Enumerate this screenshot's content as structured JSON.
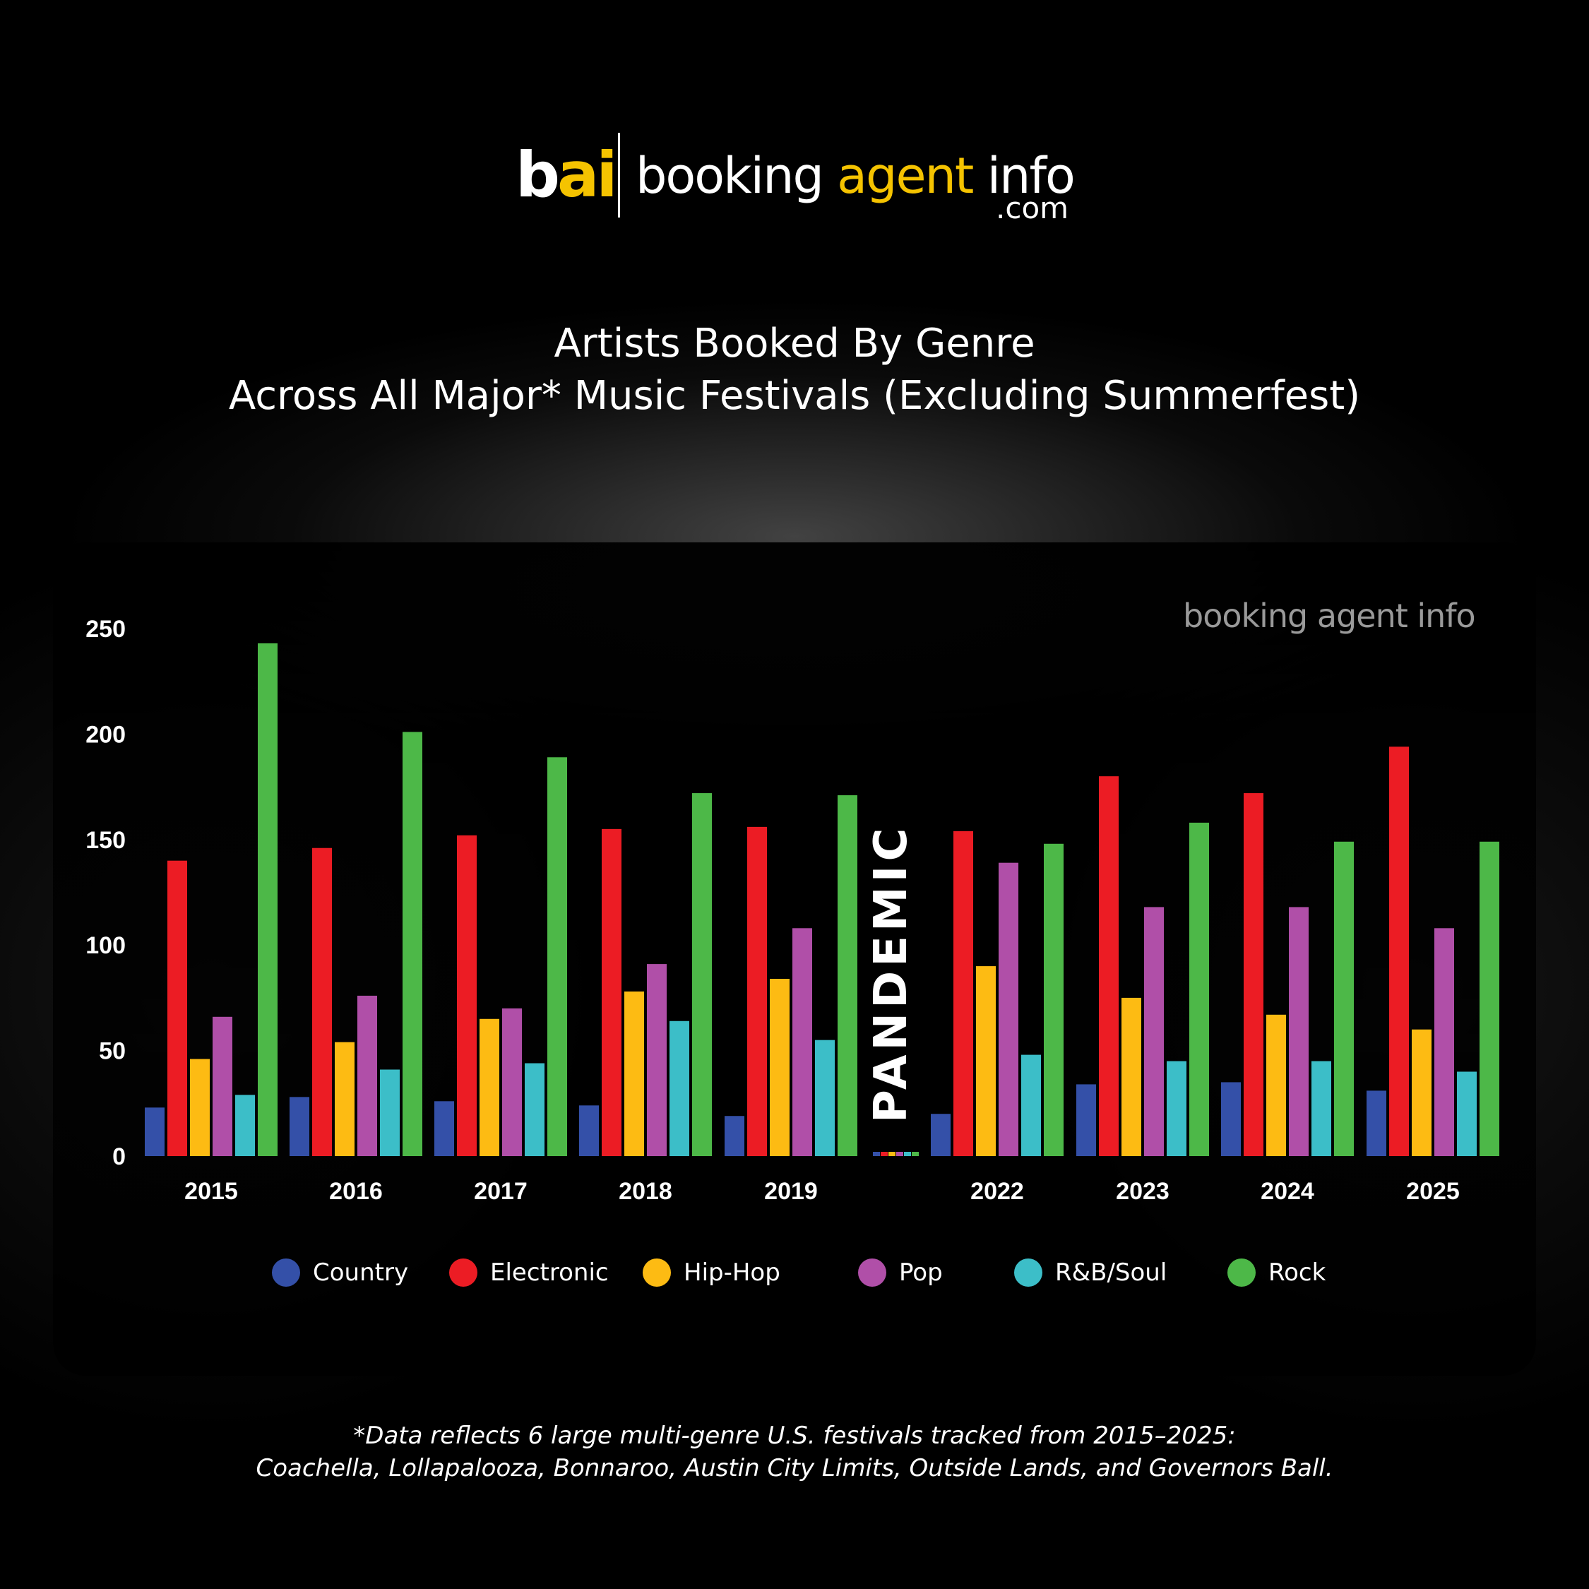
{
  "logo": {
    "mark_b": "b",
    "mark_ai": "ai",
    "word_1": "booking ",
    "word_2": "agent",
    "word_3": " info",
    "dotcom": ".com"
  },
  "title": {
    "line1": "Artists Booked By Genre",
    "line2": "Across All Major* Music Festivals (Excluding Summerfest)"
  },
  "watermark": "booking agent info",
  "pandemic_label": "PANDEMIC",
  "footnote": {
    "line1": "*Data reflects 6 large multi-genre U.S. festivals tracked from 2015–2025:",
    "line2": "Coachella, Lollapalooza, Bonnaroo, Austin City Limits, Outside Lands, and Governors Ball."
  },
  "colors": {
    "Country": "#3450a8",
    "Electronic": "#ec1c24",
    "Hip-Hop": "#fdbb13",
    "Pop": "#b04fa8",
    "R&B/Soul": "#3cbec8",
    "Rock": "#4db848"
  },
  "chart_data": {
    "type": "bar",
    "title": "Artists Booked By Genre Across All Major* Music Festivals (Excluding Summerfest)",
    "categories": [
      "2015",
      "2016",
      "2017",
      "2018",
      "2019",
      "2022",
      "2023",
      "2024",
      "2025"
    ],
    "gap_after": "2019",
    "gap_label": "PANDEMIC",
    "ylim": [
      0,
      250
    ],
    "yticks": [
      "0",
      "50",
      "100",
      "150",
      "200",
      "250"
    ],
    "grid": false,
    "legend_position": "bottom",
    "series": [
      {
        "name": "Country",
        "values": [
          23,
          28,
          26,
          24,
          19,
          20,
          34,
          35,
          31
        ]
      },
      {
        "name": "Electronic",
        "values": [
          140,
          146,
          152,
          155,
          156,
          154,
          180,
          172,
          194
        ]
      },
      {
        "name": "Hip-Hop",
        "values": [
          46,
          54,
          65,
          78,
          84,
          90,
          75,
          67,
          60
        ]
      },
      {
        "name": "Pop",
        "values": [
          66,
          76,
          70,
          91,
          108,
          139,
          118,
          118,
          108
        ]
      },
      {
        "name": "R&B/Soul",
        "values": [
          29,
          41,
          44,
          64,
          55,
          48,
          45,
          45,
          40
        ]
      },
      {
        "name": "Rock",
        "values": [
          243,
          201,
          189,
          172,
          171,
          148,
          158,
          149,
          149
        ]
      }
    ]
  }
}
